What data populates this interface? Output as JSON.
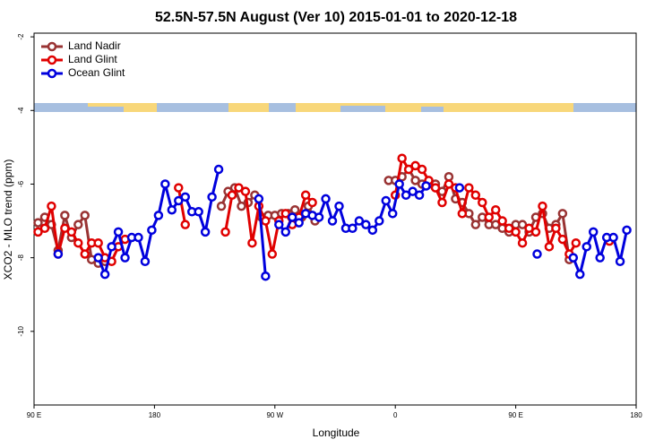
{
  "chart_data": {
    "type": "line",
    "title": "52.5N-57.5N August (Ver 10)   2015-01-01 to 2020-12-18",
    "xlabel": "Longitude",
    "ylabel": "XCO2 - MLO trend (ppm)",
    "xlim": [
      -270,
      180
    ],
    "xticks": [
      {
        "value": -270,
        "label": "90 E"
      },
      {
        "value": -180,
        "label": "180"
      },
      {
        "value": -90,
        "label": "90 W"
      },
      0,
      {
        "value": 90,
        "label": "90 E"
      },
      {
        "value": 180,
        "label": "180"
      }
    ],
    "ylim": [
      -12,
      -1.9
    ],
    "yticks": [
      -2,
      -4,
      -6,
      -8,
      -10
    ],
    "legend": "upper left",
    "series": [
      {
        "name": "Land Nadir",
        "color": "#993333",
        "x": [
          -267,
          -262,
          -257,
          -252,
          -247,
          -242,
          -237,
          -232,
          -227,
          -222,
          -217,
          -212,
          -130,
          -125,
          -120,
          -115,
          -110,
          -105,
          -100,
          -95,
          -90,
          -85,
          -80,
          -75,
          -70,
          -65,
          -60,
          -55,
          -5,
          0,
          5,
          10,
          15,
          20,
          25,
          30,
          35,
          40,
          45,
          50,
          55,
          60,
          65,
          70,
          75,
          80,
          85,
          90,
          95,
          100,
          105,
          110,
          115,
          120,
          125,
          130
        ],
        "values": [
          -7.05,
          -6.9,
          -7.1,
          -7.8,
          -6.85,
          -7.45,
          -7.1,
          -6.85,
          -8.05,
          -8.15,
          -8.1,
          null,
          -6.6,
          -6.2,
          -6.1,
          -6.6,
          -6.5,
          -6.3,
          -6.9,
          -6.85,
          -6.85,
          -6.8,
          -6.8,
          -6.7,
          -6.9,
          -6.6,
          -7.0,
          null,
          -5.9,
          -5.9,
          -5.8,
          -5.6,
          -5.9,
          -6.0,
          -6.0,
          -6.0,
          -6.2,
          -5.8,
          -6.4,
          -6.5,
          -6.8,
          -7.1,
          -6.9,
          -7.1,
          -7.1,
          -7.2,
          -7.3,
          -7.1,
          -7.1,
          -7.3,
          -6.9,
          -6.8,
          -7.2,
          -7.1,
          -6.8,
          -8.05
        ]
      },
      {
        "name": "Land Glint",
        "color": "#e00000",
        "x": [
          -267,
          -262,
          -257,
          -252,
          -247,
          -242,
          -237,
          -232,
          -227,
          -222,
          -217,
          -212,
          -207,
          -202,
          -197,
          -162,
          -157,
          -150,
          -127,
          -122,
          -117,
          -112,
          -107,
          -102,
          -97,
          -92,
          -87,
          -82,
          -77,
          -72,
          -67,
          -62,
          -57,
          0,
          5,
          10,
          15,
          20,
          25,
          30,
          35,
          40,
          45,
          50,
          55,
          60,
          65,
          70,
          75,
          80,
          85,
          90,
          95,
          100,
          105,
          110,
          115,
          120,
          125,
          130,
          135,
          150,
          160
        ],
        "values": [
          -7.3,
          -7.2,
          -6.6,
          -7.9,
          -7.2,
          -7.3,
          -7.6,
          -7.9,
          -7.6,
          -7.6,
          -8.0,
          -8.1,
          -7.7,
          -7.5,
          null,
          -6.1,
          -7.1,
          null,
          -7.3,
          -6.3,
          -6.1,
          -6.2,
          -7.6,
          -6.6,
          -7.0,
          -7.9,
          -7.0,
          -6.8,
          -7.1,
          -6.9,
          -6.3,
          -6.5,
          null,
          -6.3,
          -5.3,
          -5.6,
          -5.5,
          -5.6,
          -5.9,
          -6.1,
          -6.5,
          -6.0,
          -6.1,
          -6.8,
          -6.1,
          -6.3,
          -6.5,
          -6.9,
          -6.7,
          -7.0,
          -7.2,
          -7.3,
          -7.6,
          -7.2,
          -7.3,
          -6.6,
          -7.7,
          -7.2,
          -7.5,
          -7.9,
          -7.6,
          null,
          -7.55
        ]
      },
      {
        "name": "Ocean Glint",
        "color": "#0000dd",
        "x": [
          -252,
          -237,
          -222,
          -217,
          -212,
          -207,
          -202,
          -197,
          -192,
          -187,
          -182,
          -177,
          -172,
          -167,
          -162,
          -157,
          -152,
          -147,
          -142,
          -137,
          -132,
          -127,
          -102,
          -97,
          -92,
          -87,
          -82,
          -77,
          -72,
          -67,
          -62,
          -57,
          -52,
          -47,
          -42,
          -37,
          -32,
          -27,
          -22,
          -17,
          -12,
          -7,
          -2,
          3,
          8,
          13,
          18,
          23,
          35,
          48,
          75,
          106,
          120,
          133,
          138,
          143,
          148,
          153,
          158,
          163,
          168,
          173
        ],
        "values": [
          -7.9,
          null,
          -8.0,
          -8.45,
          -7.7,
          -7.3,
          -8.0,
          -7.45,
          -7.45,
          -8.1,
          -7.25,
          -6.85,
          -6.0,
          -6.7,
          -6.45,
          -6.35,
          -6.75,
          -6.75,
          -7.3,
          -6.35,
          -5.6,
          null,
          -6.4,
          -8.5,
          null,
          -7.1,
          -7.3,
          -6.9,
          -7.05,
          -6.8,
          -6.85,
          -6.9,
          -6.4,
          -7.0,
          -6.6,
          -7.2,
          -7.2,
          -7.0,
          -7.1,
          -7.25,
          -7.0,
          -6.45,
          -6.8,
          -6.0,
          -6.3,
          -6.2,
          -6.3,
          -6.05,
          null,
          -6.1,
          null,
          -7.9,
          null,
          -8.0,
          -8.45,
          -7.7,
          -7.3,
          -8.0,
          -7.45,
          -7.45,
          -8.1,
          -7.25
        ]
      }
    ]
  }
}
